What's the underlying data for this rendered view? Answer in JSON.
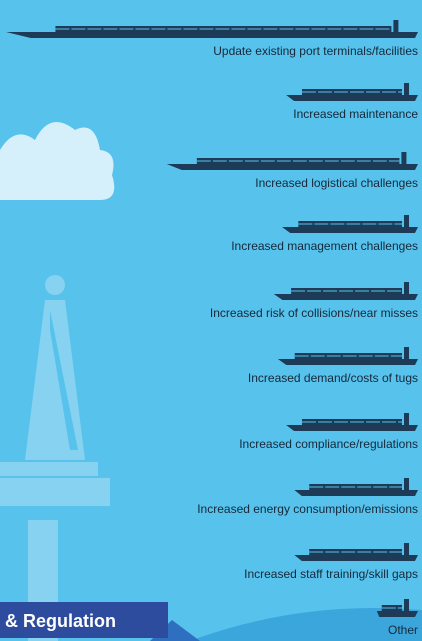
{
  "chart_data": {
    "type": "ship-bar",
    "categories": [
      "Update existing port terminals/facilities",
      "Increased maintenance",
      "Increased logistical challenges",
      "Increased management challenges",
      "Increased risk of collisions/near misses",
      "Increased demand/costs of tugs",
      "Increased compliance/regulations",
      "Increased energy consumption/emissions",
      "Increased staff training/skill gaps",
      "Other"
    ],
    "values": [
      100,
      32,
      61,
      33,
      35,
      34,
      32,
      30,
      30,
      10
    ],
    "xlim": [
      0,
      100
    ],
    "color": "#1d3a57",
    "banner": "& Regulation"
  }
}
